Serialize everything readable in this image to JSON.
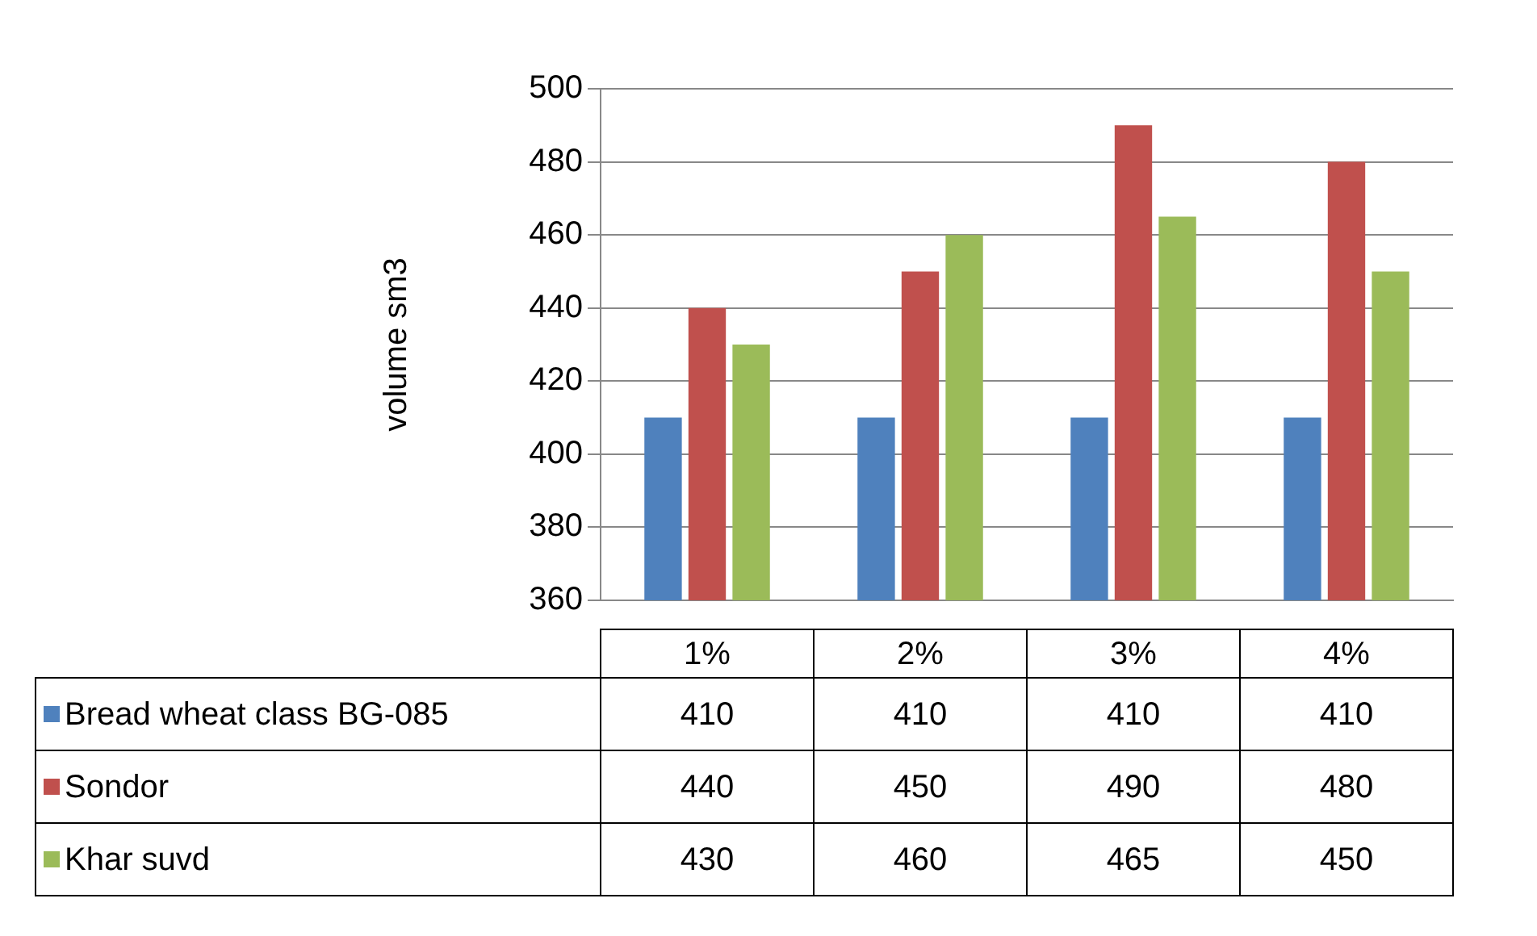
{
  "chart_data": {
    "type": "bar",
    "ylabel": "volume sm3",
    "categories": [
      "1%",
      "2%",
      "3%",
      "4%"
    ],
    "series": [
      {
        "name": "Bread wheat class BG-085",
        "color": "#4f81bd",
        "values": [
          410,
          410,
          410,
          410
        ]
      },
      {
        "name": "Sondor",
        "color": "#c0504d",
        "values": [
          440,
          450,
          490,
          480
        ]
      },
      {
        "name": "Khar suvd",
        "color": "#9bbb59",
        "values": [
          430,
          460,
          465,
          450
        ]
      }
    ],
    "ylim": [
      360,
      500
    ],
    "yticks": [
      360,
      380,
      400,
      420,
      440,
      460,
      480,
      500
    ],
    "grid": "y",
    "data_labels": true,
    "legend": "bottom"
  }
}
